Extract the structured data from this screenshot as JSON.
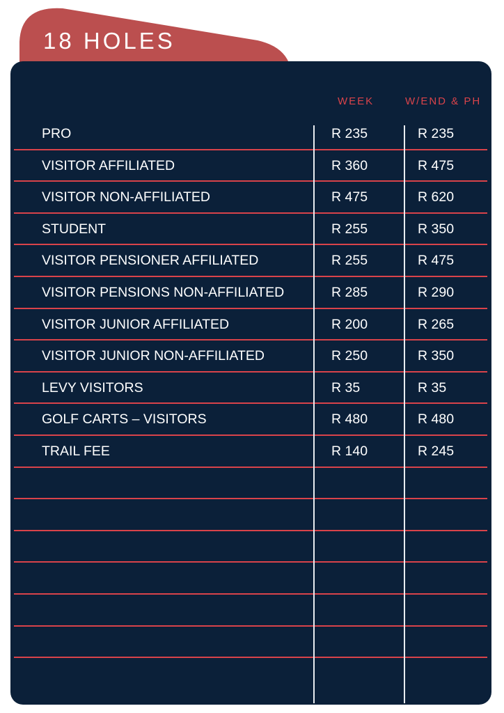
{
  "title": "18 HOLES",
  "colors": {
    "tab": "#bb4f4f",
    "panel": "#0b2039",
    "accent": "#d9434a",
    "text": "#ffffff"
  },
  "headers": {
    "week": "WEEK",
    "weekend": "W/END & PH"
  },
  "rows": [
    {
      "label": "PRO",
      "week": "R 235",
      "weekend": "R 235"
    },
    {
      "label": "VISITOR AFFILIATED",
      "week": "R 360",
      "weekend": "R 475"
    },
    {
      "label": "VISITOR NON-AFFILIATED",
      "week": "R 475",
      "weekend": "R 620"
    },
    {
      "label": "STUDENT",
      "week": "R 255",
      "weekend": "R 350"
    },
    {
      "label": "VISITOR PENSIONER AFFILIATED",
      "week": "R 255",
      "weekend": "R 475"
    },
    {
      "label": "VISITOR PENSIONS NON-AFFILIATED",
      "week": "R 285",
      "weekend": "R 290"
    },
    {
      "label": "VISITOR JUNIOR AFFILIATED",
      "week": "R 200",
      "weekend": "R 265"
    },
    {
      "label": "VISITOR JUNIOR NON-AFFILIATED",
      "week": "R 250",
      "weekend": "R 350"
    },
    {
      "label": "LEVY VISITORS",
      "week": "R 35",
      "weekend": "R 35"
    },
    {
      "label": "GOLF CARTS – VISITORS",
      "week": "R 480",
      "weekend": "R 480"
    },
    {
      "label": "TRAIL FEE",
      "week": "R 140",
      "weekend": "R 245"
    }
  ]
}
